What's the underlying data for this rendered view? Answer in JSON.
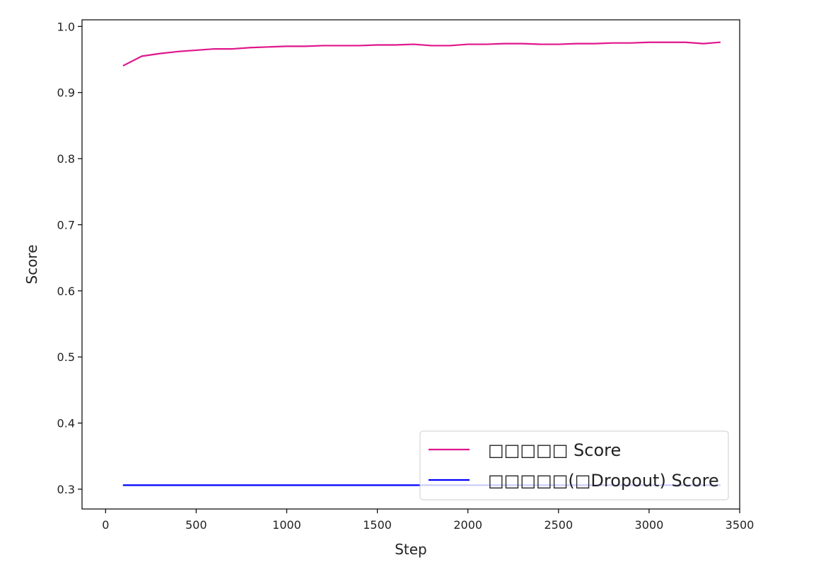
{
  "chart_data": {
    "type": "line",
    "title": "",
    "xlabel": "Step",
    "ylabel": "Score",
    "xlim": [
      -130,
      3500
    ],
    "ylim": [
      0.27,
      1.01
    ],
    "xticks": [
      0,
      500,
      1000,
      1500,
      2000,
      2500,
      3000,
      3500
    ],
    "yticks": [
      0.3,
      0.4,
      0.5,
      0.6,
      0.7,
      0.8,
      0.9,
      1.0
    ],
    "xtick_labels": [
      "0",
      "500",
      "1000",
      "1500",
      "2000",
      "2500",
      "3000",
      "3500"
    ],
    "ytick_labels": [
      "0.3",
      "0.4",
      "0.5",
      "0.6",
      "0.7",
      "0.8",
      "0.9",
      "1.0"
    ],
    "grid": false,
    "legend_position": "lower right",
    "series": [
      {
        "name": "□□□□□ Score",
        "color": "#e0168c",
        "x": [
          100,
          200,
          300,
          400,
          500,
          600,
          700,
          800,
          900,
          1000,
          1100,
          1200,
          1300,
          1400,
          1500,
          1600,
          1700,
          1800,
          1900,
          2000,
          2100,
          2200,
          2300,
          2400,
          2500,
          2600,
          2700,
          2800,
          2900,
          3000,
          3100,
          3200,
          3300,
          3390
        ],
        "y": [
          0.941,
          0.955,
          0.959,
          0.962,
          0.964,
          0.966,
          0.966,
          0.968,
          0.969,
          0.97,
          0.97,
          0.971,
          0.971,
          0.971,
          0.972,
          0.972,
          0.973,
          0.971,
          0.971,
          0.973,
          0.973,
          0.974,
          0.974,
          0.973,
          0.973,
          0.974,
          0.974,
          0.975,
          0.975,
          0.976,
          0.976,
          0.976,
          0.974,
          0.976
        ]
      },
      {
        "name": "□□□□□(□Dropout) Score",
        "color": "#0000ff",
        "x": [
          100,
          3390
        ],
        "y": [
          0.306,
          0.306
        ]
      }
    ]
  }
}
